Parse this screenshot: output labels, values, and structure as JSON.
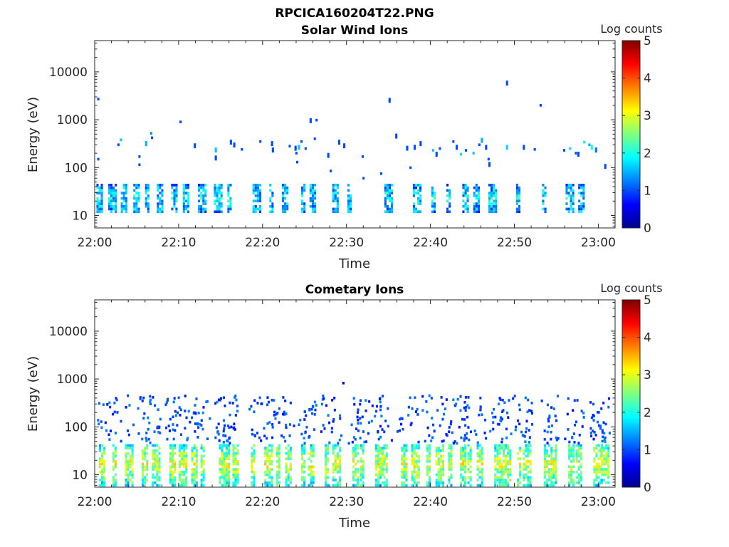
{
  "page_title": "RPCICA160204T22.PNG",
  "chart_data": [
    {
      "type": "heatmap",
      "title": "Solar Wind Ions",
      "xlabel": "Time",
      "ylabel": "Energy (eV)",
      "x_ticks": [
        "22:00",
        "22:10",
        "22:20",
        "22:30",
        "22:40",
        "22:50",
        "23:00"
      ],
      "xlim_minutes": [
        0,
        62
      ],
      "y_ticks": [
        "10",
        "100",
        "1000",
        "10000"
      ],
      "y_scale": "log",
      "ylim_eV": [
        5.5,
        45000
      ],
      "colorbar": {
        "label": "Log counts",
        "ticks": [
          "0",
          "1",
          "2",
          "3",
          "4",
          "5"
        ],
        "range": [
          0,
          5
        ],
        "colormap": "jet"
      },
      "bursts_minute": [
        0.2,
        1.6,
        3.1,
        4.6,
        6.0,
        7.4,
        9.1,
        10.5,
        12.3,
        14.2,
        15.8,
        18.8,
        20.8,
        22.3,
        24.6,
        25.6,
        28.3,
        30.1,
        34.5,
        37.9,
        40.1,
        41.9,
        43.8,
        45.1,
        46.9,
        50.2,
        53.3,
        56.1,
        57.6
      ],
      "burst_energy_eV": [
        12,
        45
      ],
      "burst_level": 1.2,
      "scattered_points": [
        {
          "t": 0.3,
          "e": 2700,
          "v": 1
        },
        {
          "t": 0.3,
          "e": 150,
          "v": 1
        },
        {
          "t": 2.7,
          "e": 300,
          "v": 1
        },
        {
          "t": 3.0,
          "e": 380,
          "v": 1.6
        },
        {
          "t": 5.2,
          "e": 170,
          "v": 1
        },
        {
          "t": 5.2,
          "e": 115,
          "v": 1
        },
        {
          "t": 6.0,
          "e": 300,
          "v": 1.5
        },
        {
          "t": 6.6,
          "e": 520,
          "v": 1.3
        },
        {
          "t": 6.7,
          "e": 420,
          "v": 1
        },
        {
          "t": 10.1,
          "e": 900,
          "v": 1
        },
        {
          "t": 11.8,
          "e": 270,
          "v": 1
        },
        {
          "t": 14.3,
          "e": 220,
          "v": 1.6
        },
        {
          "t": 14.3,
          "e": 150,
          "v": 1
        },
        {
          "t": 16.1,
          "e": 320,
          "v": 1
        },
        {
          "t": 16.5,
          "e": 280,
          "v": 1
        },
        {
          "t": 17.4,
          "e": 240,
          "v": 1
        },
        {
          "t": 19.6,
          "e": 350,
          "v": 1
        },
        {
          "t": 21.0,
          "e": 300,
          "v": 1
        },
        {
          "t": 21.1,
          "e": 220,
          "v": 1
        },
        {
          "t": 23.1,
          "e": 280,
          "v": 1
        },
        {
          "t": 23.8,
          "e": 240,
          "v": 1
        },
        {
          "t": 23.9,
          "e": 200,
          "v": 1
        },
        {
          "t": 24.0,
          "e": 130,
          "v": 1
        },
        {
          "t": 24.2,
          "e": 250,
          "v": 1.6
        },
        {
          "t": 24.5,
          "e": 350,
          "v": 1
        },
        {
          "t": 25.0,
          "e": 250,
          "v": 1
        },
        {
          "t": 25.6,
          "e": 900,
          "v": 1
        },
        {
          "t": 26.1,
          "e": 400,
          "v": 1
        },
        {
          "t": 26.3,
          "e": 980,
          "v": 1
        },
        {
          "t": 27.7,
          "e": 170,
          "v": 1
        },
        {
          "t": 28.0,
          "e": 85,
          "v": 1
        },
        {
          "t": 29.0,
          "e": 320,
          "v": 1
        },
        {
          "t": 29.6,
          "e": 270,
          "v": 1
        },
        {
          "t": 31.8,
          "e": 170,
          "v": 1
        },
        {
          "t": 31.9,
          "e": 60,
          "v": 1
        },
        {
          "t": 34.0,
          "e": 75,
          "v": 1
        },
        {
          "t": 35.0,
          "e": 2400,
          "v": 1
        },
        {
          "t": 35.8,
          "e": 430,
          "v": 1
        },
        {
          "t": 37.1,
          "e": 240,
          "v": 1
        },
        {
          "t": 37.5,
          "e": 100,
          "v": 1
        },
        {
          "t": 38.0,
          "e": 250,
          "v": 1
        },
        {
          "t": 38.7,
          "e": 300,
          "v": 1
        },
        {
          "t": 40.2,
          "e": 230,
          "v": 1.6
        },
        {
          "t": 40.6,
          "e": 180,
          "v": 1
        },
        {
          "t": 41.0,
          "e": 250,
          "v": 1
        },
        {
          "t": 42.6,
          "e": 350,
          "v": 1
        },
        {
          "t": 43.0,
          "e": 250,
          "v": 1
        },
        {
          "t": 43.5,
          "e": 190,
          "v": 1.7
        },
        {
          "t": 44.1,
          "e": 230,
          "v": 1
        },
        {
          "t": 45.0,
          "e": 200,
          "v": 1.6
        },
        {
          "t": 45.7,
          "e": 300,
          "v": 1
        },
        {
          "t": 46.0,
          "e": 350,
          "v": 1.5
        },
        {
          "t": 46.5,
          "e": 250,
          "v": 1
        },
        {
          "t": 46.8,
          "e": 150,
          "v": 1
        },
        {
          "t": 46.9,
          "e": 110,
          "v": 1
        },
        {
          "t": 49.0,
          "e": 5500,
          "v": 1
        },
        {
          "t": 49.0,
          "e": 250,
          "v": 1.7
        },
        {
          "t": 51.0,
          "e": 250,
          "v": 1
        },
        {
          "t": 52.3,
          "e": 240,
          "v": 1
        },
        {
          "t": 53.0,
          "e": 2000,
          "v": 1
        },
        {
          "t": 55.8,
          "e": 230,
          "v": 1
        },
        {
          "t": 56.5,
          "e": 250,
          "v": 1.7
        },
        {
          "t": 57.2,
          "e": 200,
          "v": 1
        },
        {
          "t": 57.5,
          "e": 180,
          "v": 1
        },
        {
          "t": 58.2,
          "e": 340,
          "v": 1.8
        },
        {
          "t": 58.8,
          "e": 300,
          "v": 1.5
        },
        {
          "t": 59.1,
          "e": 250,
          "v": 2
        },
        {
          "t": 59.6,
          "e": 220,
          "v": 1.2
        },
        {
          "t": 60.7,
          "e": 100,
          "v": 1
        }
      ]
    },
    {
      "type": "heatmap",
      "title": "Cometary Ions",
      "xlabel": "Time",
      "ylabel": "Energy (eV)",
      "x_ticks": [
        "22:00",
        "22:10",
        "22:20",
        "22:30",
        "22:40",
        "22:50",
        "23:00"
      ],
      "xlim_minutes": [
        0,
        62
      ],
      "y_ticks": [
        "10",
        "100",
        "1000",
        "10000"
      ],
      "y_scale": "log",
      "ylim_eV": [
        5.5,
        45000
      ],
      "colorbar": {
        "label": "Log counts",
        "ticks": [
          "0",
          "1",
          "2",
          "3",
          "4",
          "5"
        ],
        "range": [
          0,
          5
        ],
        "colormap": "jet"
      },
      "bursts_minute": [
        0.5,
        2.1,
        3.6,
        5.6,
        6.8,
        8.9,
        10.0,
        11.5,
        12.6,
        14.8,
        15.6,
        16.4,
        18.6,
        20.2,
        21.6,
        22.7,
        24.6,
        25.4,
        27.4,
        28.3,
        30.7,
        31.6,
        33.4,
        34.4,
        36.5,
        37.7,
        39.5,
        40.6,
        42.1,
        43.5,
        44.4,
        45.5,
        47.6,
        48.6,
        50.3,
        51.0,
        53.5,
        54.3,
        56.4,
        57.3,
        59.4,
        60.3
      ],
      "burst_energy_eV": [
        6,
        45
      ],
      "burst_level": 1.8,
      "upper_energy_eV": [
        45,
        450
      ],
      "upper_level": 1.0,
      "marked_point": {
        "t": 29.5,
        "e": 820,
        "v": 0.3
      }
    }
  ]
}
